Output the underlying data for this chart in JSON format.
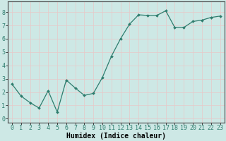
{
  "x": [
    0,
    1,
    2,
    3,
    4,
    5,
    6,
    7,
    8,
    9,
    10,
    11,
    12,
    13,
    14,
    15,
    16,
    17,
    18,
    19,
    20,
    21,
    22,
    23
  ],
  "y": [
    2.6,
    1.7,
    1.2,
    0.8,
    2.1,
    0.5,
    2.9,
    2.3,
    1.75,
    1.9,
    3.1,
    4.7,
    6.0,
    7.1,
    7.8,
    7.75,
    7.75,
    8.1,
    6.85,
    6.85,
    7.3,
    7.4,
    7.6,
    7.7
  ],
  "line_color": "#2e7d6e",
  "marker": "D",
  "marker_size": 2.0,
  "line_width": 0.9,
  "bg_color": "#cde8e5",
  "grid_color": "#e8c8c8",
  "xlabel": "Humidex (Indice chaleur)",
  "xlabel_fontsize": 7,
  "xlabel_weight": "bold",
  "xtick_labels": [
    "0",
    "1",
    "2",
    "3",
    "4",
    "5",
    "6",
    "7",
    "8",
    "9",
    "10",
    "11",
    "12",
    "13",
    "14",
    "15",
    "16",
    "17",
    "18",
    "19",
    "20",
    "21",
    "22",
    "23"
  ],
  "ytick_labels": [
    "0",
    "1",
    "2",
    "3",
    "4",
    "5",
    "6",
    "7",
    "8"
  ],
  "ylim": [
    -0.3,
    8.8
  ],
  "xlim": [
    -0.5,
    23.5
  ],
  "tick_fontsize": 6,
  "grid_linewidth": 0.5
}
